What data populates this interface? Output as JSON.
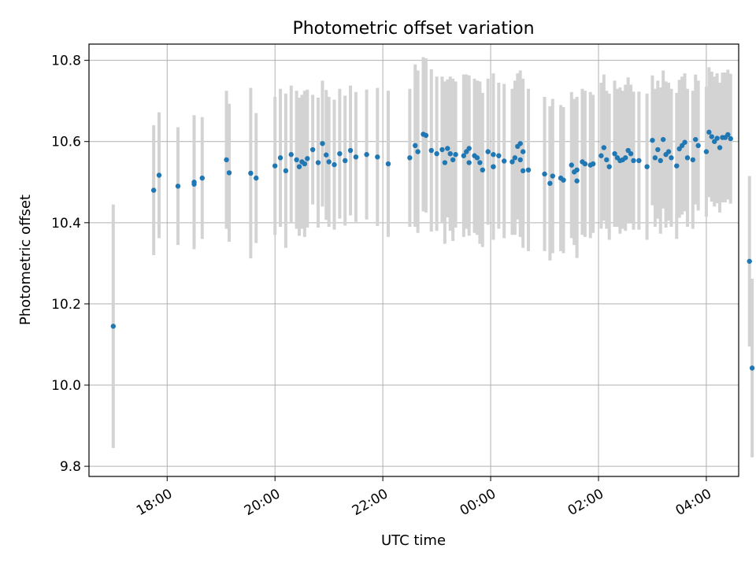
{
  "chart_data": {
    "type": "scatter",
    "title": "Photometric offset variation",
    "xlabel": "UTC time",
    "ylabel": "Photometric offset",
    "x_unit": "hours",
    "xlim": [
      16.55,
      28.6
    ],
    "ylim": [
      9.775,
      10.84
    ],
    "x_ticks": [
      18,
      20,
      22,
      24,
      26,
      28
    ],
    "x_tick_labels": [
      "18:00",
      "20:00",
      "22:00",
      "00:00",
      "02:00",
      "04:00"
    ],
    "y_ticks": [
      9.8,
      10.0,
      10.2,
      10.4,
      10.6,
      10.8
    ],
    "y_tick_labels": [
      "9.8",
      "10.0",
      "10.2",
      "10.4",
      "10.6",
      "10.8"
    ],
    "grid": true,
    "colors": {
      "point": "#1f77b4",
      "errorbar": "#d3d3d3",
      "grid": "#b0b0b0"
    },
    "points": [
      [
        17.0,
        10.145,
        0.3
      ],
      [
        17.75,
        10.48,
        0.16
      ],
      [
        17.85,
        10.517,
        0.155
      ],
      [
        18.2,
        10.49,
        0.145
      ],
      [
        18.5,
        10.5,
        0.165
      ],
      [
        18.5,
        10.495,
        0.16
      ],
      [
        18.65,
        10.51,
        0.15
      ],
      [
        19.1,
        10.555,
        0.17
      ],
      [
        19.15,
        10.523,
        0.17
      ],
      [
        19.55,
        10.522,
        0.21
      ],
      [
        19.65,
        10.51,
        0.16
      ],
      [
        20.0,
        10.54,
        0.17
      ],
      [
        20.1,
        10.56,
        0.17
      ],
      [
        20.2,
        10.528,
        0.19
      ],
      [
        20.3,
        10.568,
        0.17
      ],
      [
        20.4,
        10.555,
        0.17
      ],
      [
        20.45,
        10.538,
        0.17
      ],
      [
        20.5,
        10.55,
        0.165
      ],
      [
        20.55,
        10.545,
        0.18
      ],
      [
        20.6,
        10.558,
        0.17
      ],
      [
        20.7,
        10.58,
        0.135
      ],
      [
        20.8,
        10.548,
        0.16
      ],
      [
        20.88,
        10.595,
        0.155
      ],
      [
        20.95,
        10.567,
        0.16
      ],
      [
        21.0,
        10.55,
        0.16
      ],
      [
        21.1,
        10.543,
        0.16
      ],
      [
        21.2,
        10.57,
        0.16
      ],
      [
        21.3,
        10.553,
        0.16
      ],
      [
        21.4,
        10.578,
        0.16
      ],
      [
        21.5,
        10.562,
        0.16
      ],
      [
        21.7,
        10.568,
        0.16
      ],
      [
        21.9,
        10.562,
        0.17
      ],
      [
        22.1,
        10.545,
        0.18
      ],
      [
        22.5,
        10.56,
        0.17
      ],
      [
        22.6,
        10.59,
        0.2
      ],
      [
        22.65,
        10.575,
        0.2
      ],
      [
        22.75,
        10.618,
        0.19
      ],
      [
        22.8,
        10.615,
        0.19
      ],
      [
        22.9,
        10.578,
        0.2
      ],
      [
        23.0,
        10.57,
        0.19
      ],
      [
        23.1,
        10.58,
        0.18
      ],
      [
        23.15,
        10.548,
        0.2
      ],
      [
        23.2,
        10.583,
        0.17
      ],
      [
        23.25,
        10.57,
        0.19
      ],
      [
        23.3,
        10.555,
        0.2
      ],
      [
        23.35,
        10.568,
        0.18
      ],
      [
        23.5,
        10.565,
        0.2
      ],
      [
        23.55,
        10.575,
        0.19
      ],
      [
        23.6,
        10.583,
        0.18
      ],
      [
        23.6,
        10.548,
        0.18
      ],
      [
        23.7,
        10.565,
        0.19
      ],
      [
        23.75,
        10.56,
        0.19
      ],
      [
        23.8,
        10.548,
        0.2
      ],
      [
        23.85,
        10.53,
        0.19
      ],
      [
        23.95,
        10.575,
        0.18
      ],
      [
        24.05,
        10.538,
        0.18
      ],
      [
        24.05,
        10.568,
        0.2
      ],
      [
        24.15,
        10.565,
        0.18
      ],
      [
        24.25,
        10.552,
        0.19
      ],
      [
        24.4,
        10.55,
        0.18
      ],
      [
        24.45,
        10.56,
        0.19
      ],
      [
        24.5,
        10.588,
        0.18
      ],
      [
        24.55,
        10.595,
        0.18
      ],
      [
        24.55,
        10.555,
        0.19
      ],
      [
        24.6,
        10.575,
        0.18
      ],
      [
        24.6,
        10.528,
        0.19
      ],
      [
        24.7,
        10.53,
        0.2
      ],
      [
        25.0,
        10.52,
        0.19
      ],
      [
        25.1,
        10.497,
        0.19
      ],
      [
        25.15,
        10.515,
        0.19
      ],
      [
        25.3,
        10.51,
        0.18
      ],
      [
        25.35,
        10.505,
        0.18
      ],
      [
        25.5,
        10.542,
        0.18
      ],
      [
        25.55,
        10.525,
        0.18
      ],
      [
        25.6,
        10.503,
        0.19
      ],
      [
        25.6,
        10.53,
        0.18
      ],
      [
        25.7,
        10.55,
        0.18
      ],
      [
        25.75,
        10.545,
        0.18
      ],
      [
        25.85,
        10.542,
        0.18
      ],
      [
        25.9,
        10.545,
        0.17
      ],
      [
        26.05,
        10.565,
        0.18
      ],
      [
        26.1,
        10.585,
        0.18
      ],
      [
        26.15,
        10.555,
        0.17
      ],
      [
        26.2,
        10.538,
        0.18
      ],
      [
        26.3,
        10.57,
        0.18
      ],
      [
        26.35,
        10.56,
        0.17
      ],
      [
        26.4,
        10.553,
        0.18
      ],
      [
        26.45,
        10.555,
        0.17
      ],
      [
        26.5,
        10.56,
        0.18
      ],
      [
        26.55,
        10.578,
        0.18
      ],
      [
        26.6,
        10.57,
        0.17
      ],
      [
        26.65,
        10.553,
        0.17
      ],
      [
        26.75,
        10.553,
        0.17
      ],
      [
        26.9,
        10.538,
        0.18
      ],
      [
        27.0,
        10.603,
        0.16
      ],
      [
        27.05,
        10.56,
        0.17
      ],
      [
        27.1,
        10.58,
        0.17
      ],
      [
        27.15,
        10.553,
        0.18
      ],
      [
        27.2,
        10.605,
        0.17
      ],
      [
        27.25,
        10.568,
        0.18
      ],
      [
        27.3,
        10.575,
        0.17
      ],
      [
        27.35,
        10.56,
        0.17
      ],
      [
        27.45,
        10.54,
        0.18
      ],
      [
        27.5,
        10.582,
        0.17
      ],
      [
        27.55,
        10.59,
        0.17
      ],
      [
        27.6,
        10.598,
        0.17
      ],
      [
        27.65,
        10.56,
        0.17
      ],
      [
        27.75,
        10.555,
        0.17
      ],
      [
        27.8,
        10.605,
        0.16
      ],
      [
        27.85,
        10.59,
        0.16
      ],
      [
        28.0,
        10.575,
        0.16
      ],
      [
        28.05,
        10.623,
        0.16
      ],
      [
        28.1,
        10.612,
        0.16
      ],
      [
        28.15,
        10.6,
        0.16
      ],
      [
        28.2,
        10.608,
        0.16
      ],
      [
        28.25,
        10.585,
        0.16
      ],
      [
        28.3,
        10.61,
        0.16
      ],
      [
        28.35,
        10.61,
        0.16
      ],
      [
        28.4,
        10.617,
        0.16
      ],
      [
        28.45,
        10.607,
        0.16
      ],
      [
        28.8,
        10.305,
        0.21
      ],
      [
        28.85,
        10.042,
        0.22
      ]
    ]
  }
}
